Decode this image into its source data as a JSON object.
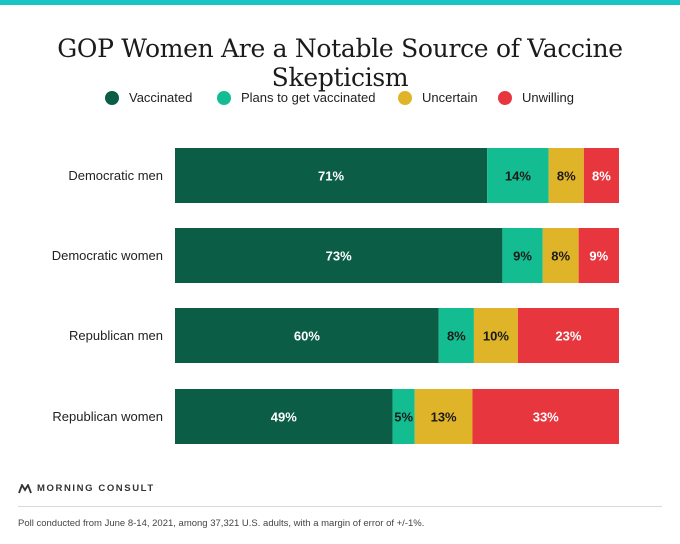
{
  "title": "GOP Women Are a Notable Source of Vaccine Skepticism",
  "footnote": "Poll conducted from June 8-14, 2021, among 37,321 U.S. adults, with a margin of error of +/-1%.",
  "brand": "MORNING CONSULT",
  "chart_data": {
    "type": "bar",
    "orientation": "horizontal",
    "stacked": true,
    "title": "GOP Women Are a Notable Source of Vaccine Skepticism",
    "xlabel": "",
    "ylabel": "",
    "legend_position": "top",
    "categories": [
      "Democratic men",
      "Democratic women",
      "Republican men",
      "Republican women"
    ],
    "series": [
      {
        "name": "Vaccinated",
        "color": "#0b5e45",
        "label_color": "#ffffff",
        "values": [
          71,
          73,
          60,
          49
        ]
      },
      {
        "name": "Plans to get vaccinated",
        "color": "#14bd91",
        "label_color": "#1a1a1a",
        "values": [
          14,
          9,
          8,
          5
        ]
      },
      {
        "name": "Uncertain",
        "color": "#e0b428",
        "label_color": "#1a1a1a",
        "values": [
          8,
          8,
          10,
          13
        ]
      },
      {
        "name": "Unwilling",
        "color": "#e8363f",
        "label_color": "#ffffff",
        "values": [
          8,
          9,
          23,
          33
        ]
      }
    ],
    "value_labels": [
      [
        "71%",
        "14%",
        "8%",
        "8%"
      ],
      [
        "73%",
        "9%",
        "8%",
        "9%"
      ],
      [
        "60%",
        "8%",
        "10%",
        "23%"
      ],
      [
        "49%",
        "5%",
        "13%",
        "33%"
      ]
    ]
  }
}
